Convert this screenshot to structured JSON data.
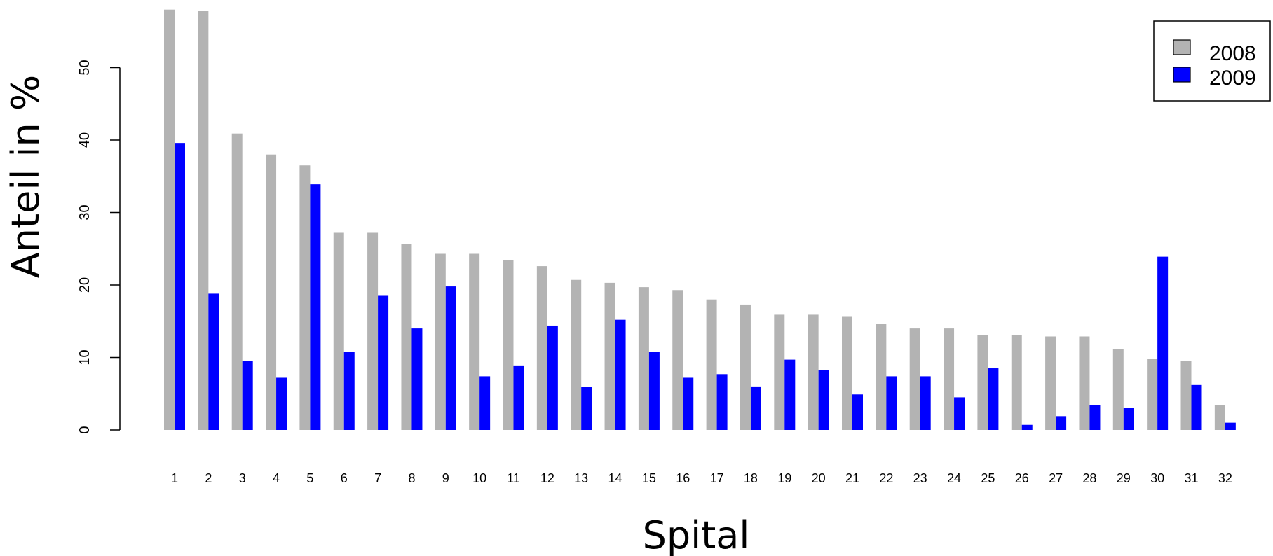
{
  "chart_data": {
    "type": "bar",
    "xlabel": "Spital",
    "ylabel": "Anteil in %",
    "categories": [
      "1",
      "2",
      "3",
      "4",
      "5",
      "6",
      "7",
      "8",
      "9",
      "10",
      "11",
      "12",
      "13",
      "14",
      "15",
      "16",
      "17",
      "18",
      "19",
      "20",
      "21",
      "22",
      "23",
      "24",
      "25",
      "26",
      "27",
      "28",
      "29",
      "30",
      "31",
      "32"
    ],
    "yticks": [
      0,
      10,
      20,
      30,
      40,
      50
    ],
    "ylim": [
      0,
      58
    ],
    "series": [
      {
        "name": "2008",
        "color": "#b3b3b3",
        "values": [
          58,
          57.8,
          40.9,
          38,
          36.5,
          27.2,
          27.2,
          25.7,
          24.3,
          24.3,
          23.4,
          22.6,
          20.7,
          20.3,
          19.7,
          19.3,
          18,
          17.3,
          15.9,
          15.9,
          15.7,
          14.6,
          14,
          14,
          13.1,
          13.1,
          12.9,
          12.9,
          11.2,
          9.8,
          9.5,
          3.4
        ]
      },
      {
        "name": "2009",
        "color": "#0000ff",
        "values": [
          39.6,
          18.8,
          9.5,
          7.2,
          33.9,
          10.8,
          18.6,
          14,
          19.8,
          7.4,
          8.9,
          14.4,
          5.9,
          15.2,
          10.8,
          7.2,
          7.7,
          6,
          9.7,
          8.3,
          4.9,
          7.4,
          7.4,
          4.5,
          8.5,
          0.7,
          1.9,
          3.4,
          3,
          23.9,
          6.2,
          1
        ]
      }
    ],
    "grid": false,
    "legend_position": "top-right"
  }
}
